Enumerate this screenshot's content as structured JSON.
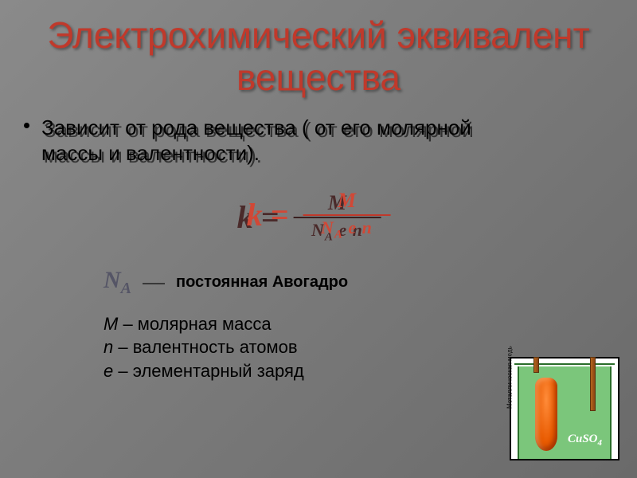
{
  "colors": {
    "title": "#c0392b",
    "formula_main": "#d14836",
    "formula_shadow": "#4a2a2a",
    "frac_bar_main": "#c0392b",
    "frac_bar_shadow": "#3a2020"
  },
  "title": "Электрохимический эквивалент вещества",
  "bullet": "Зависит от рода вещества ( от его молярной массы и валентности).",
  "formula": {
    "lhs": "k =",
    "numerator": "M",
    "denominator_NA": "N",
    "denominator_NA_sub": "A",
    "denominator_rest": " e n"
  },
  "avogadro": {
    "symbol": "N",
    "symbol_sub": "A",
    "dash": "—",
    "label": "постоянная Авогадро"
  },
  "defs": [
    {
      "sym": "M",
      "text": " – молярная масса"
    },
    {
      "sym": "n",
      "text": " – валентность атомов"
    },
    {
      "sym": "e",
      "text": " – элементарный заряд"
    }
  ],
  "diagram": {
    "formula": "CuSO",
    "formula_sub": "4",
    "side_label": "Металлическая медь"
  }
}
